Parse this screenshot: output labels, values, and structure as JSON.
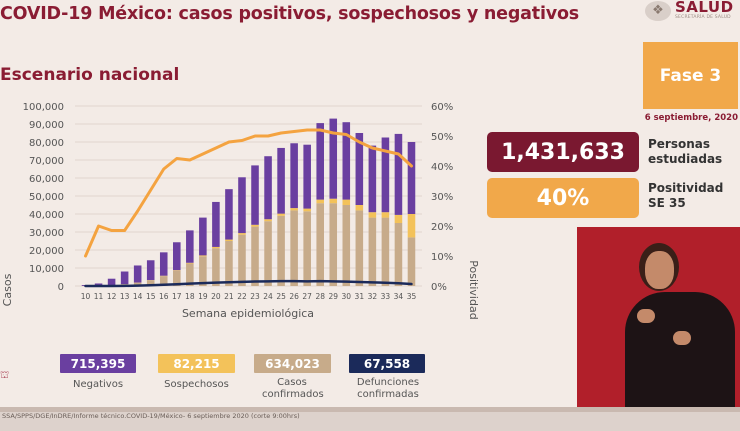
{
  "header": {
    "title": "COVID-19 México: casos positivos, sospechosos y negativos",
    "subtitle": "Escenario nacional",
    "logo_text": "SALUD",
    "logo_tag": "SECRETARÍA DE SALUD"
  },
  "phase": {
    "label": "Fase 3",
    "date": "6 septiembre, 2020"
  },
  "stats": [
    {
      "value": "1,431,633",
      "label_lines": [
        "Personas",
        "estudiadas"
      ],
      "color": "#7a1830"
    },
    {
      "value": "40%",
      "label_lines": [
        "Positividad",
        "SE 35"
      ],
      "color": "#f1a84a"
    }
  ],
  "totals": [
    {
      "value": "715,395",
      "label": "Negativos",
      "color": "#6a3fa0"
    },
    {
      "value": "82,215",
      "label": "Sospechosos",
      "color": "#f3c25a"
    },
    {
      "value": "634,023",
      "label": "Casos confirmados",
      "color": "#c7ab8a"
    },
    {
      "value": "67,558",
      "label": "Defunciones confirmadas",
      "color": "#1b2a5a"
    }
  ],
  "footer": {
    "source": "SSA/SPPS/DGE/InDRE/Informe técnico.COVID-19/México- 6 septiembre 2020 (corte 9:00hrs)"
  },
  "chart_data": {
    "type": "bar",
    "stacked": true,
    "xlabel": "Semana epidemiológica",
    "ylabel": "Casos",
    "y2label": "Positividad",
    "ylim": [
      0,
      100000
    ],
    "y2lim": [
      0,
      60
    ],
    "yticks": [
      "0",
      "10,000",
      "20,000",
      "30,000",
      "40,000",
      "50,000",
      "60,000",
      "70,000",
      "80,000",
      "90,000",
      "100,000"
    ],
    "y2ticks": [
      "0%",
      "10%",
      "20%",
      "30%",
      "40%",
      "50%",
      "60%"
    ],
    "categories": [
      "10",
      "11",
      "12",
      "13",
      "14",
      "15",
      "16",
      "17",
      "18",
      "19",
      "20",
      "21",
      "22",
      "23",
      "24",
      "25",
      "26",
      "27",
      "28",
      "29",
      "30",
      "31",
      "32",
      "33",
      "34",
      "35"
    ],
    "series": [
      {
        "name": "Casos confirmados",
        "kind": "bar",
        "color": "#c7ab8a",
        "values": [
          50,
          200,
          500,
          1000,
          1800,
          3200,
          5500,
          8500,
          12500,
          16500,
          21000,
          25000,
          28500,
          33000,
          36000,
          39000,
          42000,
          41500,
          46000,
          46000,
          45000,
          42000,
          38000,
          38000,
          35000,
          27000
        ]
      },
      {
        "name": "Sospechosos",
        "kind": "bar",
        "color": "#f3c25a",
        "values": [
          0,
          0,
          50,
          50,
          100,
          100,
          200,
          300,
          400,
          500,
          700,
          800,
          900,
          1000,
          1100,
          1200,
          1300,
          1500,
          2000,
          2500,
          3000,
          3000,
          3000,
          3000,
          4500,
          13000
        ]
      },
      {
        "name": "Negativos",
        "kind": "bar",
        "color": "#6a3fa0",
        "values": [
          500,
          1200,
          3500,
          7000,
          9500,
          11000,
          13000,
          15500,
          18000,
          21000,
          25000,
          28000,
          31000,
          33000,
          35000,
          36500,
          36000,
          35500,
          42500,
          44500,
          43000,
          40000,
          37000,
          41500,
          45000,
          40000
        ]
      },
      {
        "name": "Defunciones confirmadas",
        "kind": "line",
        "color": "#1b2a5a",
        "axis": "left",
        "values": [
          0,
          10,
          30,
          80,
          200,
          400,
          700,
          1000,
          1300,
          1600,
          1900,
          2100,
          2300,
          2500,
          2600,
          2700,
          2700,
          2600,
          2700,
          2600,
          2400,
          2200,
          2000,
          1800,
          1500,
          1100
        ]
      },
      {
        "name": "Positividad",
        "kind": "line",
        "color": "#f4a340",
        "axis": "right",
        "values": [
          10,
          20,
          18.5,
          18.5,
          25,
          32,
          39,
          42.5,
          42,
          44,
          46,
          48,
          48.5,
          50,
          50,
          51,
          51.5,
          52,
          52,
          51,
          50.5,
          48,
          46,
          45,
          44,
          40
        ]
      }
    ]
  }
}
